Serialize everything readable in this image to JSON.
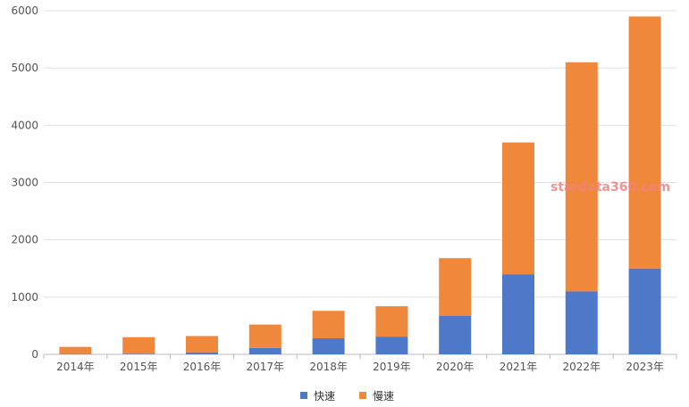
{
  "chart_data": {
    "type": "bar",
    "stacked": true,
    "categories": [
      "2014年",
      "2015年",
      "2016年",
      "2017年",
      "2018年",
      "2019年",
      "2020年",
      "2021年",
      "2022年",
      "2023年"
    ],
    "series": [
      {
        "name": "快速",
        "color": "#4e79c8",
        "values": [
          5,
          10,
          35,
          110,
          280,
          310,
          670,
          1400,
          1100,
          1500
        ]
      },
      {
        "name": "慢速",
        "color": "#f0883c",
        "values": [
          125,
          290,
          285,
          410,
          480,
          530,
          1010,
          2300,
          4000,
          4400
        ]
      }
    ],
    "ylim": [
      0,
      6000
    ],
    "yticks": [
      0,
      1000,
      2000,
      3000,
      4000,
      5000,
      6000
    ],
    "grid": true,
    "legend_position": "bottom-center",
    "watermark": "stardata360.com"
  }
}
